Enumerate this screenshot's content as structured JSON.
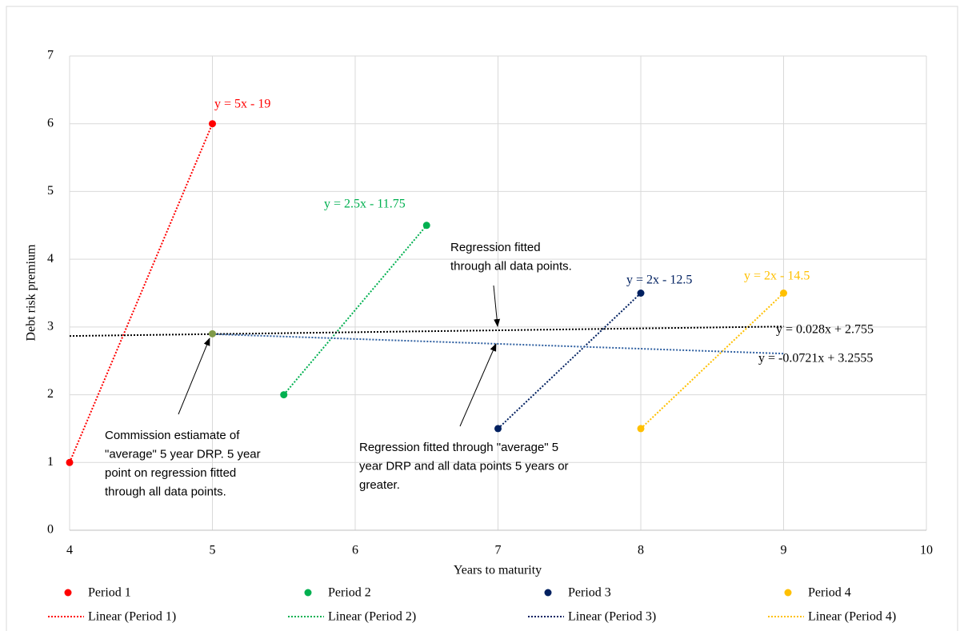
{
  "chart_data": {
    "type": "scatter",
    "x_label": "Years to maturity",
    "y_label": "Debt risk premium",
    "xlim": [
      4,
      10
    ],
    "xticks": [
      4,
      5,
      6,
      7,
      8,
      9,
      10
    ],
    "ylim": [
      0,
      7
    ],
    "yticks": [
      0,
      1,
      2,
      3,
      4,
      5,
      6,
      7
    ],
    "grid": true,
    "legend": "bottom",
    "series": [
      {
        "name": "Period 1",
        "color": "#ff0000",
        "x": [
          4,
          5
        ],
        "values": [
          1,
          6
        ]
      },
      {
        "name": "Period 2",
        "color": "#00b050",
        "x": [
          5.5,
          6.5
        ],
        "values": [
          2,
          4.5
        ]
      },
      {
        "name": "Period 3",
        "color": "#002060",
        "x": [
          7,
          8
        ],
        "values": [
          1.5,
          3.5
        ]
      },
      {
        "name": "Period 4",
        "color": "#ffc000",
        "x": [
          8,
          9
        ],
        "values": [
          1.5,
          3.5
        ]
      }
    ],
    "extra_points": {
      "color": "#7f9a48",
      "x": [
        5
      ],
      "values": [
        2.9
      ]
    },
    "trendlines": [
      {
        "name": "Linear (Period 1)",
        "color": "#ff0000",
        "x": [
          4,
          5
        ],
        "values": [
          1,
          6
        ],
        "label": "y = 5x - 19"
      },
      {
        "name": "Linear (Period 2)",
        "color": "#00b050",
        "x": [
          5.5,
          6.5
        ],
        "values": [
          2,
          4.5
        ],
        "label": "y = 2.5x - 11.75"
      },
      {
        "name": "Linear (Period 3)",
        "color": "#002060",
        "x": [
          7,
          8
        ],
        "values": [
          1.5,
          3.5
        ],
        "label": "y = 2x - 12.5"
      },
      {
        "name": "Linear (Period 4)",
        "color": "#ffc000",
        "x": [
          8,
          9
        ],
        "values": [
          1.5,
          3.5
        ],
        "label": "y = 2x - 14.5"
      },
      {
        "color": "#000000",
        "x": [
          4,
          9
        ],
        "values": [
          2.867,
          3.007
        ],
        "label": "y = 0.028x + 2.755"
      },
      {
        "color": "#2e5fa0",
        "x": [
          5,
          9
        ],
        "values": [
          2.895,
          2.607
        ],
        "label": "y = -0.0721x + 3.2555"
      }
    ],
    "annotations": [
      {
        "lines": [
          "Regression fitted",
          "through all data points."
        ]
      },
      {
        "lines": [
          "Commission estiamate of",
          "\"average\" 5 year DRP.  5 year",
          "point on regression fitted",
          "through all data points."
        ]
      },
      {
        "lines": [
          "Regression fitted through \"average\" 5",
          "year DRP and all data points 5 years or",
          "greater."
        ]
      }
    ]
  }
}
